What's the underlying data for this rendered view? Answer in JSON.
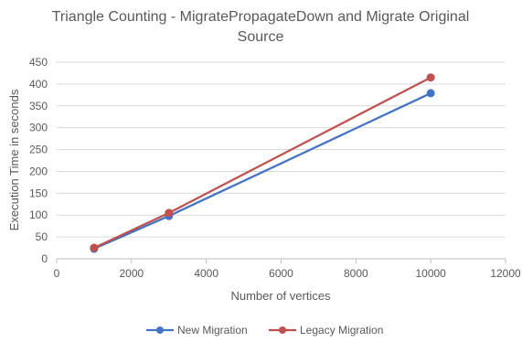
{
  "chart_data": {
    "type": "scatter",
    "title": "Triangle Counting - MigratePropagateDown and Migrate Original Source",
    "title_lines": [
      "Triangle Counting - MigratePropagateDown and Migrate Original",
      "Source"
    ],
    "xlabel": "Number of vertices",
    "ylabel": "Execution Time in seconds",
    "xlim": [
      0,
      12000
    ],
    "ylim": [
      0,
      450
    ],
    "x_ticks": [
      0,
      2000,
      4000,
      6000,
      8000,
      10000,
      12000
    ],
    "y_ticks": [
      0,
      50,
      100,
      150,
      200,
      250,
      300,
      350,
      400,
      450
    ],
    "x_tick_labels": [
      "0",
      "2000",
      "4000",
      "6000",
      "8000",
      "10000",
      "12000"
    ],
    "y_tick_labels": [
      "0",
      "50",
      "100",
      "150",
      "200",
      "250",
      "300",
      "350",
      "400",
      "450"
    ],
    "grid": "horizontal",
    "legend": "bottom",
    "series": [
      {
        "name": "New Migration",
        "color": "#4472C4",
        "x": [
          1000,
          3000,
          10000
        ],
        "y": [
          23,
          98,
          379
        ]
      },
      {
        "name": "Legacy Migration",
        "color": "#C0504D",
        "x": [
          1000,
          3000,
          10000
        ],
        "y": [
          25,
          105,
          415
        ]
      }
    ]
  }
}
